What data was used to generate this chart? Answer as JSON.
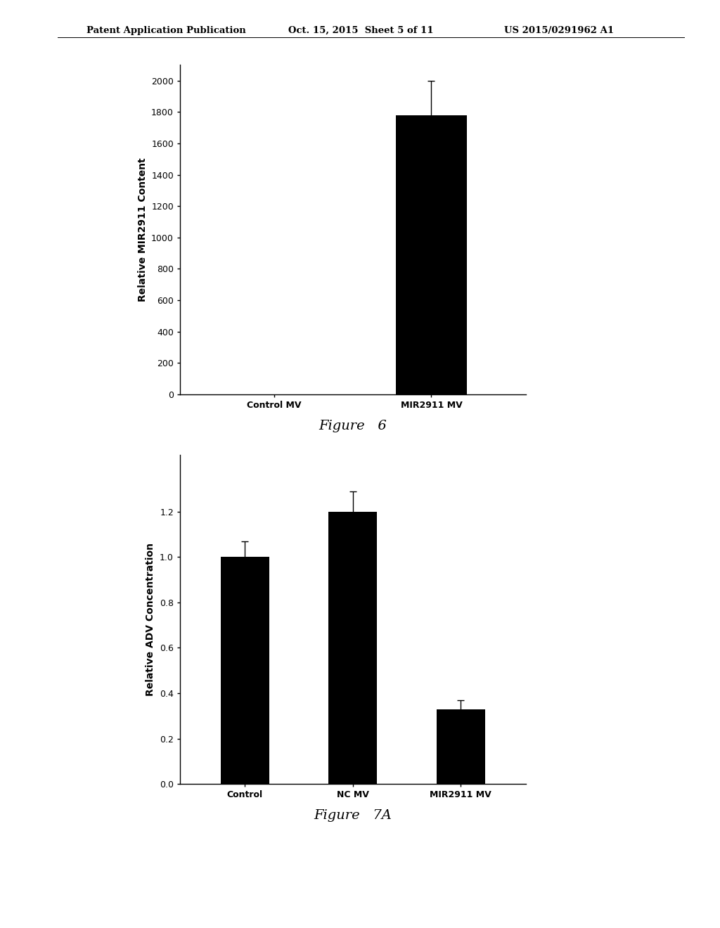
{
  "header_left": "Patent Application Publication",
  "header_center": "Oct. 15, 2015  Sheet 5 of 11",
  "header_right": "US 2015/0291962 A1",
  "fig6": {
    "categories": [
      "Control MV",
      "MIR2911 MV"
    ],
    "values": [
      0,
      1780
    ],
    "errors": [
      0,
      220
    ],
    "ylabel": "Relative MIR2911 Content",
    "ylim": [
      0,
      2100
    ],
    "yticks": [
      0,
      200,
      400,
      600,
      800,
      1000,
      1200,
      1400,
      1600,
      1800,
      2000
    ],
    "caption": "Figure   6",
    "bar_color": "#000000",
    "bar_width": 0.45
  },
  "fig7a": {
    "categories": [
      "Control",
      "NC MV",
      "MIR2911 MV"
    ],
    "values": [
      1.0,
      1.2,
      0.33
    ],
    "errors": [
      0.07,
      0.09,
      0.04
    ],
    "ylabel": "Relative ADV Concentration",
    "ylim": [
      0,
      1.45
    ],
    "yticks": [
      0.0,
      0.2,
      0.4,
      0.6,
      0.8,
      1.0,
      1.2
    ],
    "caption": "Figure   7A",
    "bar_color": "#000000",
    "bar_width": 0.45
  },
  "background_color": "#ffffff",
  "text_color": "#000000",
  "tick_fontsize": 9,
  "label_fontsize": 10,
  "caption_fontsize": 14,
  "header_fontsize": 9.5
}
